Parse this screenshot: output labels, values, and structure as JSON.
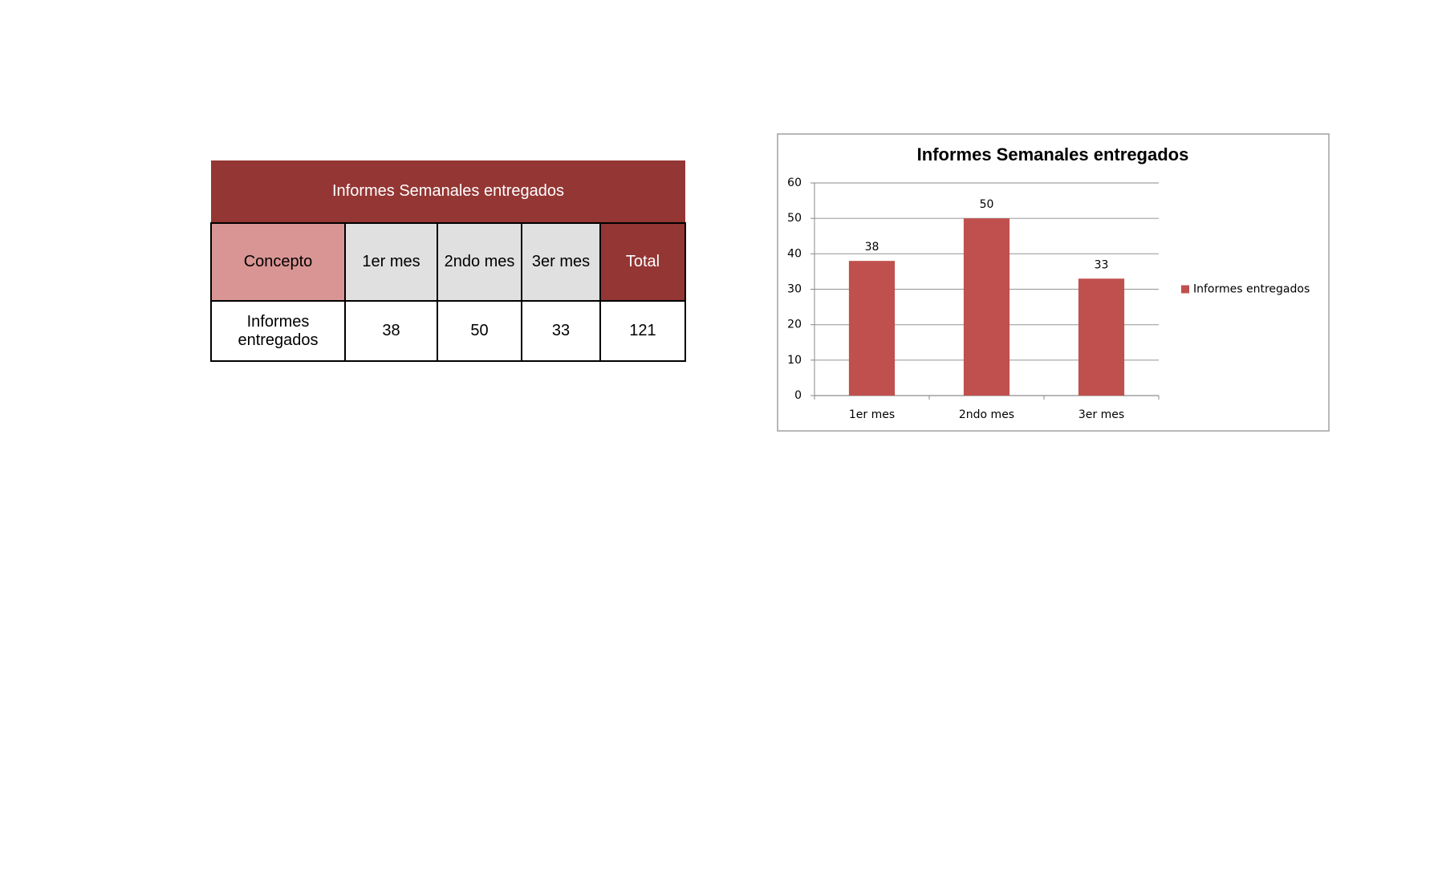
{
  "table": {
    "title": "Informes Semanales entregados",
    "header": [
      "Concepto",
      "1er mes",
      "2ndo mes",
      "3er mes",
      "Total"
    ],
    "rows": [
      [
        "Informes entregados",
        "38",
        "50",
        "33",
        "121"
      ]
    ]
  },
  "chart_data": {
    "type": "bar",
    "title": "Informes Semanales entregados",
    "categories": [
      "1er mes",
      "2ndo mes",
      "3er mes"
    ],
    "series": [
      {
        "name": "Informes entregados",
        "color": "#c0504d",
        "values": [
          38,
          50,
          33
        ]
      }
    ],
    "ylim": [
      0,
      60
    ],
    "yticks": [
      0,
      10,
      20,
      30,
      40,
      50,
      60
    ],
    "grid": true,
    "legend": "right"
  }
}
